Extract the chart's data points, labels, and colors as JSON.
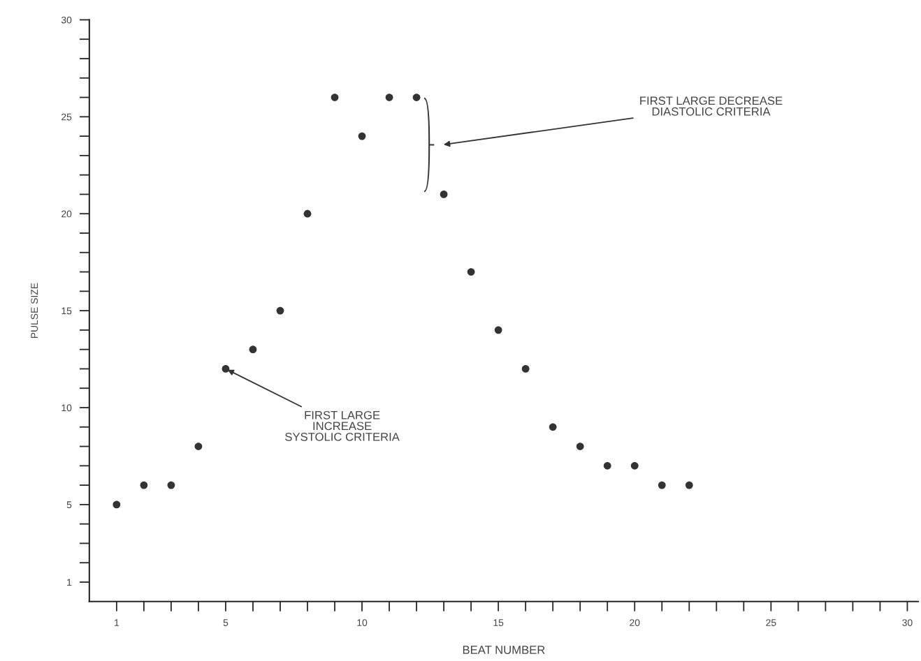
{
  "chart_data": {
    "type": "scatter",
    "xlabel": "BEAT NUMBER",
    "ylabel": "PULSE SIZE",
    "x": [
      1,
      2,
      3,
      4,
      5,
      6,
      7,
      8,
      9,
      10,
      11,
      12,
      13,
      14,
      15,
      16,
      17,
      18,
      19,
      20,
      21,
      22
    ],
    "series": [
      {
        "color": "#333333",
        "values": [
          5,
          6,
          6,
          8,
          12,
          13,
          15,
          20,
          26,
          24,
          26,
          26,
          21,
          17,
          14,
          12,
          9,
          8,
          7,
          7,
          6,
          6
        ]
      }
    ],
    "marker": "circle",
    "xlim": [
      0,
      30.4
    ],
    "ylim": [
      0,
      30
    ],
    "xticks": [
      1,
      {
        "value": 2,
        "label": null
      },
      {
        "value": 3,
        "label": null
      },
      {
        "value": 4,
        "label": null
      },
      5,
      {
        "value": 6,
        "label": null
      },
      {
        "value": 7,
        "label": null
      },
      {
        "value": 8,
        "label": null
      },
      {
        "value": 9,
        "label": null
      },
      10,
      {
        "value": 11,
        "label": null
      },
      {
        "value": 12,
        "label": null
      },
      {
        "value": 13,
        "label": null
      },
      {
        "value": 14,
        "label": null
      },
      15,
      {
        "value": 16,
        "label": null
      },
      {
        "value": 17,
        "label": null
      },
      {
        "value": 18,
        "label": null
      },
      {
        "value": 19,
        "label": null
      },
      20,
      {
        "value": 21,
        "label": null
      },
      {
        "value": 22,
        "label": null
      },
      {
        "value": 23,
        "label": null
      },
      {
        "value": 24,
        "label": null
      },
      25,
      {
        "value": 26,
        "label": null
      },
      {
        "value": 27,
        "label": null
      },
      {
        "value": 28,
        "label": null
      },
      {
        "value": 29,
        "label": null
      },
      30
    ],
    "yticks": [
      1,
      {
        "value": 2,
        "label": null
      },
      {
        "value": 3,
        "label": null
      },
      {
        "value": 4,
        "label": null
      },
      5,
      {
        "value": 6,
        "label": null
      },
      {
        "value": 7,
        "label": null
      },
      {
        "value": 8,
        "label": null
      },
      {
        "value": 9,
        "label": null
      },
      10,
      {
        "value": 11,
        "label": null
      },
      {
        "value": 12,
        "label": null
      },
      {
        "value": 13,
        "label": null
      },
      {
        "value": 14,
        "label": null
      },
      15,
      {
        "value": 16,
        "label": null
      },
      {
        "value": 17,
        "label": null
      },
      {
        "value": 18,
        "label": null
      },
      {
        "value": 19,
        "label": null
      },
      20,
      {
        "value": 21,
        "label": null
      },
      {
        "value": 22,
        "label": null
      },
      {
        "value": 23,
        "label": null
      },
      {
        "value": 24,
        "label": null
      },
      25,
      {
        "value": 26,
        "label": null
      },
      {
        "value": 27,
        "label": null
      },
      {
        "value": 28,
        "label": null
      },
      {
        "value": 29,
        "label": null
      },
      30
    ],
    "grid": false,
    "annotations": [
      {
        "text": "FIRST LARGE\nINCREASE\nSYSTOLIC CRITERIA",
        "x": 5,
        "y": 12
      },
      "FIRST LARGE DECREASE\nDIASTOLIC CRITERIA"
    ]
  }
}
